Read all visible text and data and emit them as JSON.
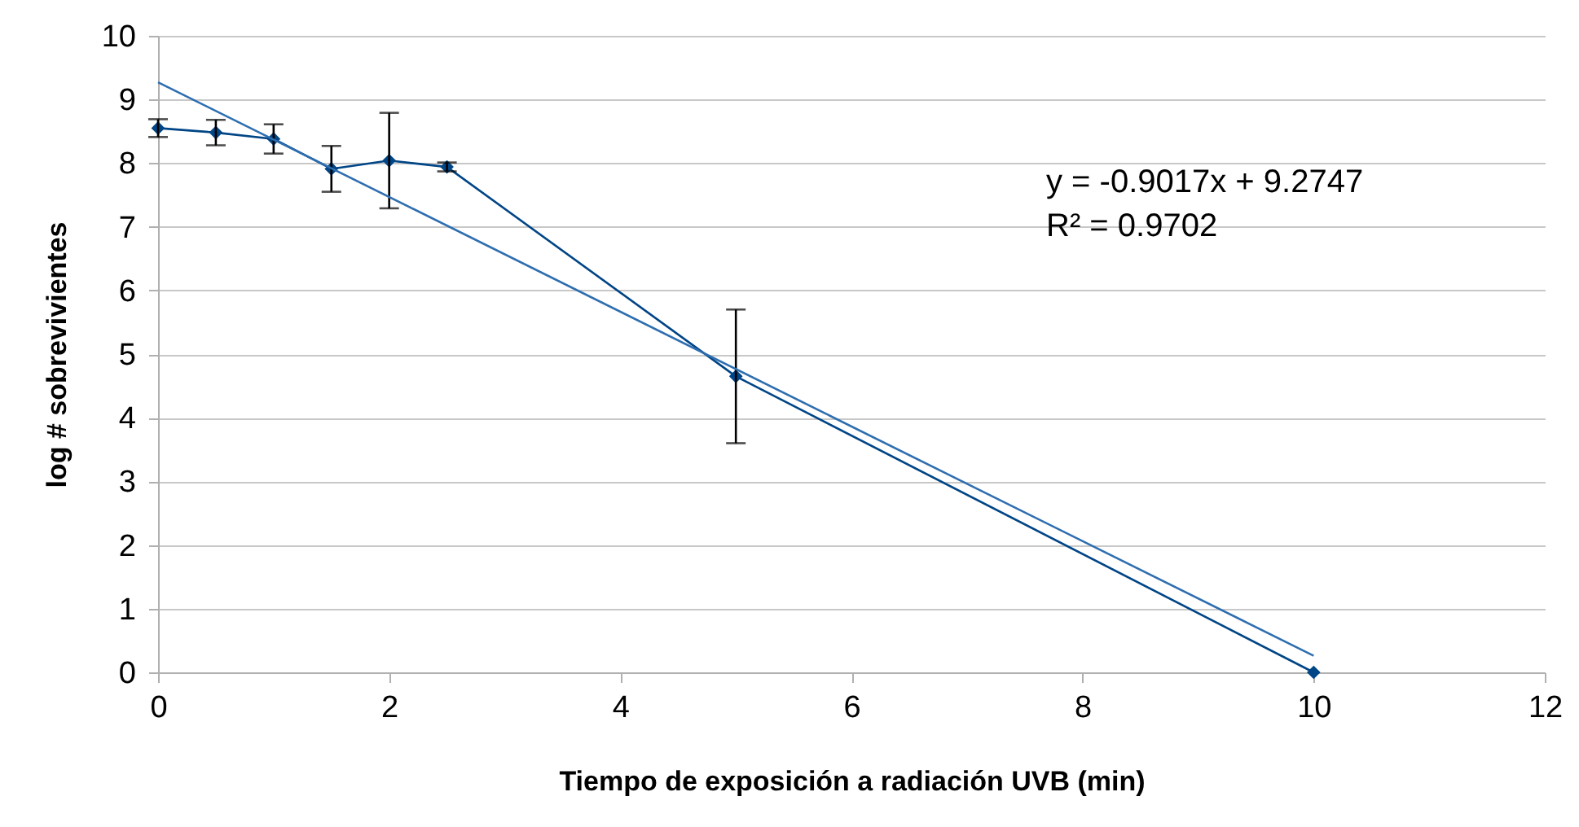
{
  "chart_data": {
    "type": "line",
    "xlabel": "Tiempo de exposición a  radiación UVB (min)",
    "ylabel": "log # sobrevivientes",
    "x": [
      0,
      0.5,
      1,
      1.5,
      2,
      2.5,
      5,
      10
    ],
    "series": [
      {
        "color": "#004586",
        "values": [
          8.55,
          8.48,
          8.38,
          7.91,
          8.04,
          7.94,
          4.65,
          0
        ],
        "errors": [
          0.14,
          0.2,
          0.23,
          0.36,
          0.75,
          0.07,
          1.05,
          null
        ],
        "marker": "diamond"
      },
      {
        "color": "#2e6eb0",
        "x": [
          0,
          10
        ],
        "values": [
          9.27,
          0.26
        ],
        "marker": "none"
      }
    ],
    "annotations": [
      "y = -0.9017x + 9.2747",
      "R² = 0.9702"
    ],
    "xlim": [
      0,
      12
    ],
    "xticks": [
      0,
      2,
      4,
      6,
      8,
      10,
      12
    ],
    "ylim": [
      0,
      10
    ],
    "yticks": [
      0,
      1,
      2,
      3,
      4,
      5,
      6,
      7,
      8,
      9,
      10
    ],
    "grid": "y"
  }
}
